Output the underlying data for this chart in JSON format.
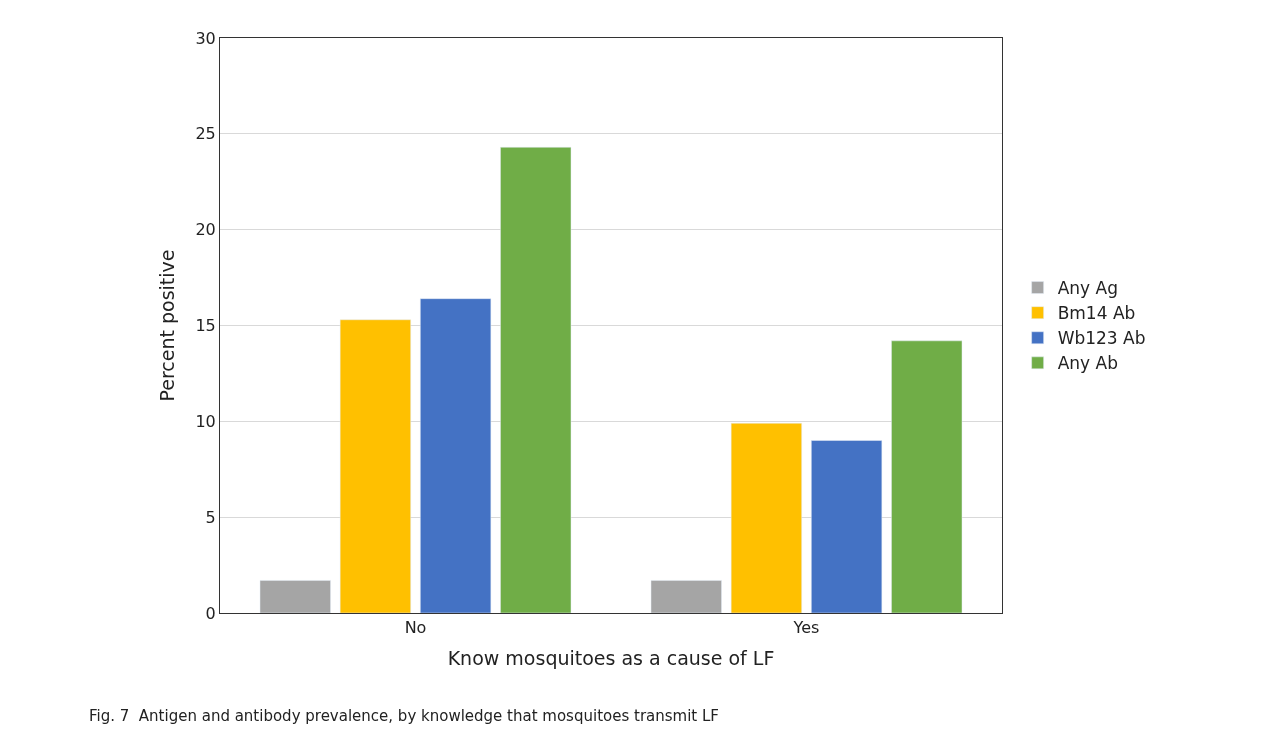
{
  "chart_data": {
    "type": "bar",
    "xlabel": "Know mosquitoes as a cause of LF",
    "ylabel": "Percent positive",
    "categories": [
      "No",
      "Yes"
    ],
    "series": [
      {
        "name": "Any Ag",
        "color": "#a5a5a5",
        "values": [
          1.7,
          1.7
        ]
      },
      {
        "name": "Bm14 Ab",
        "color": "#ffc000",
        "values": [
          15.3,
          9.9
        ]
      },
      {
        "name": "Wb123 Ab",
        "color": "#4472c4",
        "values": [
          16.4,
          9.0
        ]
      },
      {
        "name": "Any Ab",
        "color": "#70ad47",
        "values": [
          24.3,
          14.2
        ]
      }
    ],
    "ylim": [
      0,
      30
    ],
    "yticks": [
      0,
      5,
      10,
      15,
      20,
      25,
      30
    ],
    "grid": "y",
    "legend": "right",
    "annotations": [
      "Fig. 7  Antigen and antibody prevalence, by knowledge that mosquitoes transmit LF"
    ]
  }
}
